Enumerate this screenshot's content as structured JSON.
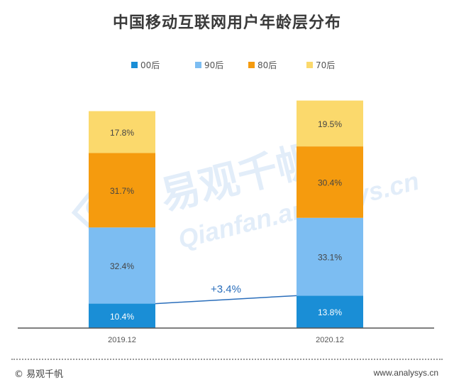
{
  "chart_data": {
    "type": "bar",
    "stacked": true,
    "title": "中国移动互联网用户年龄层分布",
    "categories": [
      "2019.12",
      "2020.12"
    ],
    "series": [
      {
        "name": "00后",
        "values": [
          10.4,
          13.8
        ],
        "labels": [
          "10.4%",
          "13.8%"
        ],
        "color": "#1a8ed6"
      },
      {
        "name": "90后",
        "values": [
          32.4,
          33.1
        ],
        "labels": [
          "32.4%",
          "33.1%"
        ],
        "color": "#7cbdf2"
      },
      {
        "name": "80后",
        "values": [
          31.7,
          30.4
        ],
        "labels": [
          "31.7%",
          "30.4%"
        ],
        "color": "#f59b0e"
      },
      {
        "name": "70后",
        "values": [
          17.8,
          19.5
        ],
        "labels": [
          "17.8%",
          "19.5%"
        ],
        "color": "#fbd96c"
      }
    ],
    "annotation": "+3.4%",
    "annotation_color": "#2a6ebb",
    "legend_position": "top",
    "grid": false
  },
  "watermark": {
    "cn": "易观千帆",
    "en": "Qianfan.analysys.cn"
  },
  "footer": {
    "left": "© 易观千帆",
    "right": "www.analysys.cn"
  }
}
